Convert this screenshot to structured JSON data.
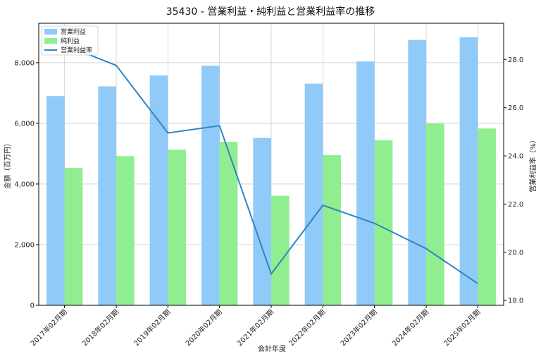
{
  "chart_data": {
    "type": "bar",
    "title": "35430 - 営業利益・純利益と営業利益率の推移",
    "xlabel": "会計年度",
    "ylabel": "金額（百万円）",
    "y2label": "営業利益率（%）",
    "categories": [
      "2017年02月期",
      "2018年02月期",
      "2019年02月期",
      "2020年02月期",
      "2021年02月期",
      "2022年02月期",
      "2023年02月期",
      "2024年02月期",
      "2025年02月期"
    ],
    "ylim": [
      0,
      9300
    ],
    "yticks": [
      0,
      2000,
      4000,
      6000,
      8000
    ],
    "ytick_labels": [
      "0",
      "2,000",
      "4,000",
      "6,000",
      "8,000"
    ],
    "y2lim": [
      17.8,
      29.5
    ],
    "y2ticks": [
      18.0,
      20.0,
      22.0,
      24.0,
      26.0,
      28.0
    ],
    "y2tick_labels": [
      "18.0",
      "20.0",
      "22.0",
      "24.0",
      "26.0",
      "28.0"
    ],
    "grid": true,
    "legend_position": "top-left",
    "series": [
      {
        "name": "営業利益",
        "type": "bar",
        "color": "#90CAF9",
        "values": [
          6900,
          7220,
          7580,
          7900,
          5520,
          7310,
          8040,
          8750,
          8840
        ]
      },
      {
        "name": "純利益",
        "type": "bar",
        "color": "#90EE90",
        "values": [
          4530,
          4920,
          5130,
          5390,
          3610,
          4950,
          5440,
          5990,
          5830
        ]
      },
      {
        "name": "営業利益率",
        "type": "line",
        "axis": "right",
        "color": "#2E86C1",
        "values": [
          28.6,
          27.75,
          24.95,
          25.25,
          19.1,
          21.95,
          21.2,
          20.15,
          18.7
        ]
      }
    ]
  }
}
